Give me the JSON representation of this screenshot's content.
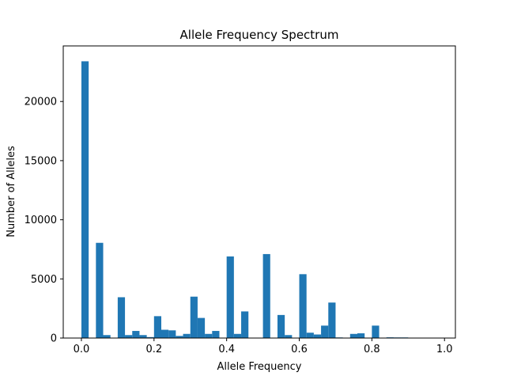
{
  "chart_data": {
    "type": "bar",
    "title": "Allele Frequency Spectrum",
    "xlabel": "Allele Frequency",
    "ylabel": "Number of Alleles",
    "xlim": [
      -0.05,
      1.03
    ],
    "ylim": [
      0,
      24700
    ],
    "xticks": [
      0.0,
      0.2,
      0.4,
      0.6,
      0.8,
      1.0
    ],
    "xtick_labels": [
      "0.0",
      "0.2",
      "0.4",
      "0.6",
      "0.8",
      "1.0"
    ],
    "yticks": [
      0,
      5000,
      10000,
      15000,
      20000
    ],
    "ytick_labels": [
      "0",
      "5000",
      "10000",
      "15000",
      "20000"
    ],
    "grid": false,
    "bar_color": "#1f77b4",
    "bin_width": 0.02,
    "bin_starts": [
      0.0,
      0.02,
      0.04,
      0.06,
      0.08,
      0.1,
      0.12,
      0.14,
      0.16,
      0.18,
      0.2,
      0.22,
      0.24,
      0.26,
      0.28,
      0.3,
      0.32,
      0.34,
      0.36,
      0.38,
      0.4,
      0.42,
      0.44,
      0.46,
      0.48,
      0.5,
      0.52,
      0.54,
      0.56,
      0.58,
      0.6,
      0.62,
      0.64,
      0.66,
      0.68,
      0.7,
      0.72,
      0.74,
      0.76,
      0.78,
      0.8,
      0.82,
      0.84,
      0.86,
      0.88,
      0.9,
      0.92,
      0.94,
      0.96,
      0.98
    ],
    "values": [
      23400,
      0,
      8050,
      250,
      0,
      3450,
      250,
      600,
      250,
      80,
      1850,
      700,
      650,
      180,
      350,
      3500,
      1700,
      350,
      600,
      0,
      6900,
      350,
      2250,
      0,
      0,
      7100,
      0,
      1950,
      250,
      0,
      5400,
      450,
      300,
      1050,
      3000,
      50,
      0,
      350,
      400,
      0,
      1050,
      0,
      60,
      50,
      50,
      0,
      0,
      0,
      0,
      0
    ]
  }
}
